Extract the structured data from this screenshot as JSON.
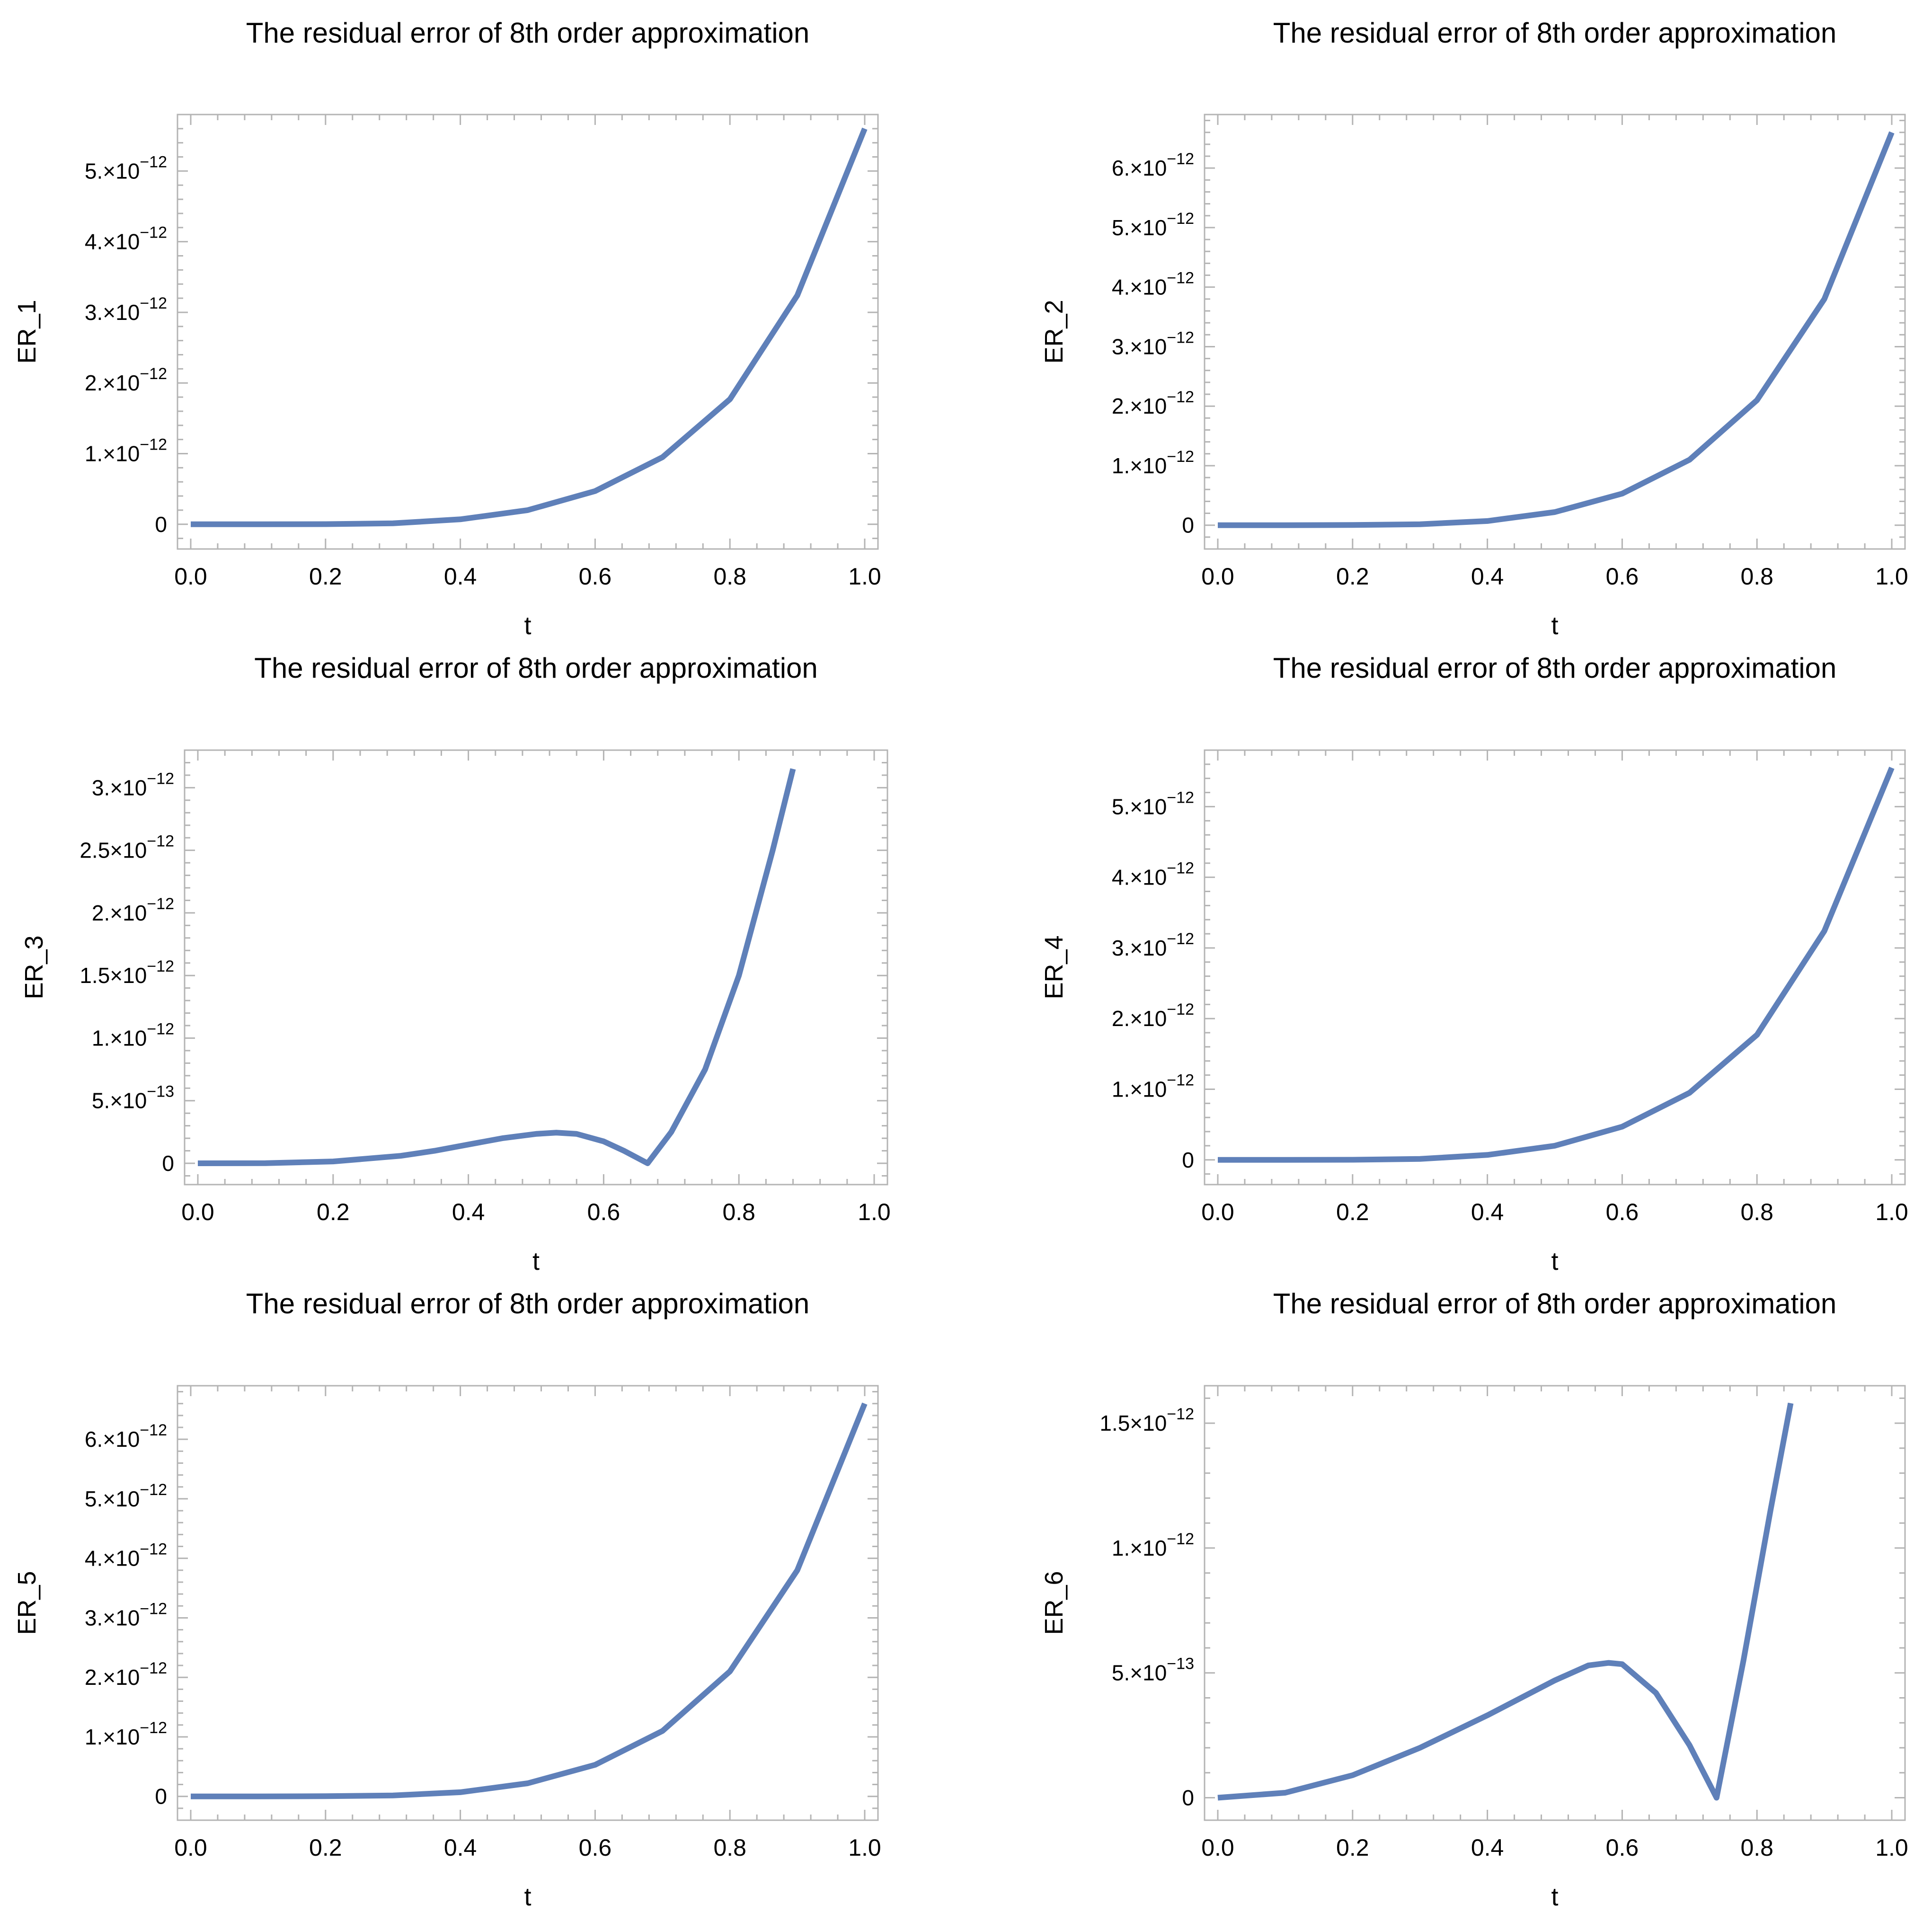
{
  "figure": {
    "series_color": "#5f80b9",
    "frame_color": "#b4b4b4"
  },
  "chart_data": [
    {
      "type": "line",
      "title": "The residual error of  8th order approximation",
      "xlabel": "t",
      "ylabel": "ER_1",
      "xlim": [
        0,
        1
      ],
      "ylim": [
        -3.5e-13,
        5.8e-12
      ],
      "x_ticks": [
        0,
        0.2,
        0.4,
        0.6,
        0.8,
        1.0
      ],
      "x_tick_labels": [
        "0.0",
        "0.2",
        "0.4",
        "0.6",
        "0.8",
        "1.0"
      ],
      "y_ticks": [
        {
          "value": 0,
          "mantissa": "0",
          "exponent": ""
        },
        {
          "value": 1e-12,
          "mantissa": "1.×10",
          "exponent": "−12"
        },
        {
          "value": 2e-12,
          "mantissa": "2.×10",
          "exponent": "−12"
        },
        {
          "value": 3e-12,
          "mantissa": "3.×10",
          "exponent": "−12"
        },
        {
          "value": 4e-12,
          "mantissa": "4.×10",
          "exponent": "−12"
        },
        {
          "value": 5e-12,
          "mantissa": "5.×10",
          "exponent": "−12"
        }
      ],
      "series": [
        {
          "name": "ER_1",
          "x": [
            0,
            0.1,
            0.2,
            0.3,
            0.4,
            0.5,
            0.6,
            0.7,
            0.8,
            0.9,
            1.0
          ],
          "values": [
            0,
            0,
            2e-15,
            1.3e-14,
            7e-14,
            2e-13,
            4.7e-13,
            9.5e-13,
            1.77e-12,
            3.24e-12,
            5.6e-12
          ]
        }
      ]
    },
    {
      "type": "line",
      "title": "The residual error of  8th order approximation",
      "xlabel": "t",
      "ylabel": "ER_2",
      "xlim": [
        0,
        1
      ],
      "ylim": [
        -4e-13,
        6.9e-12
      ],
      "x_ticks": [
        0,
        0.2,
        0.4,
        0.6,
        0.8,
        1.0
      ],
      "x_tick_labels": [
        "0.0",
        "0.2",
        "0.4",
        "0.6",
        "0.8",
        "1.0"
      ],
      "y_ticks": [
        {
          "value": 0,
          "mantissa": "0",
          "exponent": ""
        },
        {
          "value": 1e-12,
          "mantissa": "1.×10",
          "exponent": "−12"
        },
        {
          "value": 2e-12,
          "mantissa": "2.×10",
          "exponent": "−12"
        },
        {
          "value": 3e-12,
          "mantissa": "3.×10",
          "exponent": "−12"
        },
        {
          "value": 4e-12,
          "mantissa": "4.×10",
          "exponent": "−12"
        },
        {
          "value": 5e-12,
          "mantissa": "5.×10",
          "exponent": "−12"
        },
        {
          "value": 6e-12,
          "mantissa": "6.×10",
          "exponent": "−12"
        }
      ],
      "series": [
        {
          "name": "ER_2",
          "x": [
            0,
            0.1,
            0.2,
            0.3,
            0.4,
            0.5,
            0.6,
            0.7,
            0.8,
            0.9,
            1.0
          ],
          "values": [
            0,
            0,
            3e-15,
            1.6e-14,
            7e-14,
            2.2e-13,
            5.3e-13,
            1.1e-12,
            2.1e-12,
            3.8e-12,
            6.6e-12
          ]
        }
      ]
    },
    {
      "type": "line",
      "title": "The residual error of  8th order approximation",
      "xlabel": "t",
      "ylabel": "ER_3",
      "xlim": [
        0,
        1
      ],
      "ylim": [
        -1.7e-13,
        3.3e-12
      ],
      "x_ticks": [
        0,
        0.2,
        0.4,
        0.6,
        0.8,
        1.0
      ],
      "x_tick_labels": [
        "0.0",
        "0.2",
        "0.4",
        "0.6",
        "0.8",
        "1.0"
      ],
      "y_ticks": [
        {
          "value": 0,
          "mantissa": "0",
          "exponent": ""
        },
        {
          "value": 5e-13,
          "mantissa": "5.×10",
          "exponent": "−13"
        },
        {
          "value": 1e-12,
          "mantissa": "1.×10",
          "exponent": "−12"
        },
        {
          "value": 1.5e-12,
          "mantissa": "1.5×10",
          "exponent": "−12"
        },
        {
          "value": 2e-12,
          "mantissa": "2.×10",
          "exponent": "−12"
        },
        {
          "value": 2.5e-12,
          "mantissa": "2.5×10",
          "exponent": "−12"
        },
        {
          "value": 3e-12,
          "mantissa": "3.×10",
          "exponent": "−12"
        }
      ],
      "series": [
        {
          "name": "ER_3",
          "x": [
            0,
            0.1,
            0.2,
            0.3,
            0.35,
            0.4,
            0.45,
            0.5,
            0.53,
            0.56,
            0.6,
            0.63,
            0.665,
            0.7,
            0.75,
            0.8,
            0.85,
            0.88
          ],
          "values": [
            0,
            1e-15,
            1.5e-14,
            6e-14,
            1e-13,
            1.5e-13,
            2e-13,
            2.35e-13,
            2.45e-13,
            2.35e-13,
            1.75e-13,
            1e-13,
            0,
            2.5e-13,
            7.5e-13,
            1.5e-12,
            2.5e-12,
            3.15e-12
          ]
        }
      ]
    },
    {
      "type": "line",
      "title": "The residual error of  8th order approximation",
      "xlabel": "t",
      "ylabel": "ER_4",
      "xlim": [
        0,
        1
      ],
      "ylim": [
        -3.5e-13,
        5.8e-12
      ],
      "x_ticks": [
        0,
        0.2,
        0.4,
        0.6,
        0.8,
        1.0
      ],
      "x_tick_labels": [
        "0.0",
        "0.2",
        "0.4",
        "0.6",
        "0.8",
        "1.0"
      ],
      "y_ticks": [
        {
          "value": 0,
          "mantissa": "0",
          "exponent": ""
        },
        {
          "value": 1e-12,
          "mantissa": "1.×10",
          "exponent": "−12"
        },
        {
          "value": 2e-12,
          "mantissa": "2.×10",
          "exponent": "−12"
        },
        {
          "value": 3e-12,
          "mantissa": "3.×10",
          "exponent": "−12"
        },
        {
          "value": 4e-12,
          "mantissa": "4.×10",
          "exponent": "−12"
        },
        {
          "value": 5e-12,
          "mantissa": "5.×10",
          "exponent": "−12"
        }
      ],
      "series": [
        {
          "name": "ER_4",
          "x": [
            0,
            0.1,
            0.2,
            0.3,
            0.4,
            0.5,
            0.6,
            0.7,
            0.8,
            0.9,
            1.0
          ],
          "values": [
            0,
            0,
            2e-15,
            1.3e-14,
            7e-14,
            2e-13,
            4.7e-13,
            9.5e-13,
            1.77e-12,
            3.24e-12,
            5.55e-12
          ]
        }
      ]
    },
    {
      "type": "line",
      "title": "The residual error of  8th order approximation",
      "xlabel": "t",
      "ylabel": "ER_5",
      "xlim": [
        0,
        1
      ],
      "ylim": [
        -4e-13,
        6.9e-12
      ],
      "x_ticks": [
        0,
        0.2,
        0.4,
        0.6,
        0.8,
        1.0
      ],
      "x_tick_labels": [
        "0.0",
        "0.2",
        "0.4",
        "0.6",
        "0.8",
        "1.0"
      ],
      "y_ticks": [
        {
          "value": 0,
          "mantissa": "0",
          "exponent": ""
        },
        {
          "value": 1e-12,
          "mantissa": "1.×10",
          "exponent": "−12"
        },
        {
          "value": 2e-12,
          "mantissa": "2.×10",
          "exponent": "−12"
        },
        {
          "value": 3e-12,
          "mantissa": "3.×10",
          "exponent": "−12"
        },
        {
          "value": 4e-12,
          "mantissa": "4.×10",
          "exponent": "−12"
        },
        {
          "value": 5e-12,
          "mantissa": "5.×10",
          "exponent": "−12"
        },
        {
          "value": 6e-12,
          "mantissa": "6.×10",
          "exponent": "−12"
        }
      ],
      "series": [
        {
          "name": "ER_5",
          "x": [
            0,
            0.1,
            0.2,
            0.3,
            0.4,
            0.5,
            0.6,
            0.7,
            0.8,
            0.9,
            1.0
          ],
          "values": [
            0,
            0,
            3e-15,
            1.6e-14,
            7e-14,
            2.2e-13,
            5.3e-13,
            1.1e-12,
            2.1e-12,
            3.8e-12,
            6.6e-12
          ]
        }
      ]
    },
    {
      "type": "line",
      "title": "The residual error of  8th order approximation",
      "xlabel": "t",
      "ylabel": "ER_6",
      "xlim": [
        0,
        1
      ],
      "ylim": [
        -9e-14,
        1.65e-12
      ],
      "x_ticks": [
        0,
        0.2,
        0.4,
        0.6,
        0.8,
        1.0
      ],
      "x_tick_labels": [
        "0.0",
        "0.2",
        "0.4",
        "0.6",
        "0.8",
        "1.0"
      ],
      "y_ticks": [
        {
          "value": 0,
          "mantissa": "0",
          "exponent": ""
        },
        {
          "value": 5e-13,
          "mantissa": "5.×10",
          "exponent": "−13"
        },
        {
          "value": 1e-12,
          "mantissa": "1.×10",
          "exponent": "−12"
        },
        {
          "value": 1.5e-12,
          "mantissa": "1.5×10",
          "exponent": "−12"
        }
      ],
      "series": [
        {
          "name": "ER_6",
          "x": [
            0,
            0.1,
            0.2,
            0.3,
            0.4,
            0.45,
            0.5,
            0.55,
            0.58,
            0.6,
            0.65,
            0.7,
            0.74,
            0.78,
            0.82,
            0.85
          ],
          "values": [
            0,
            2e-14,
            9e-14,
            2e-13,
            3.3e-13,
            4e-13,
            4.7e-13,
            5.3e-13,
            5.4e-13,
            5.35e-13,
            4.2e-13,
            2.1e-13,
            0,
            5.5e-13,
            1.15e-12,
            1.58e-12
          ]
        }
      ]
    }
  ]
}
